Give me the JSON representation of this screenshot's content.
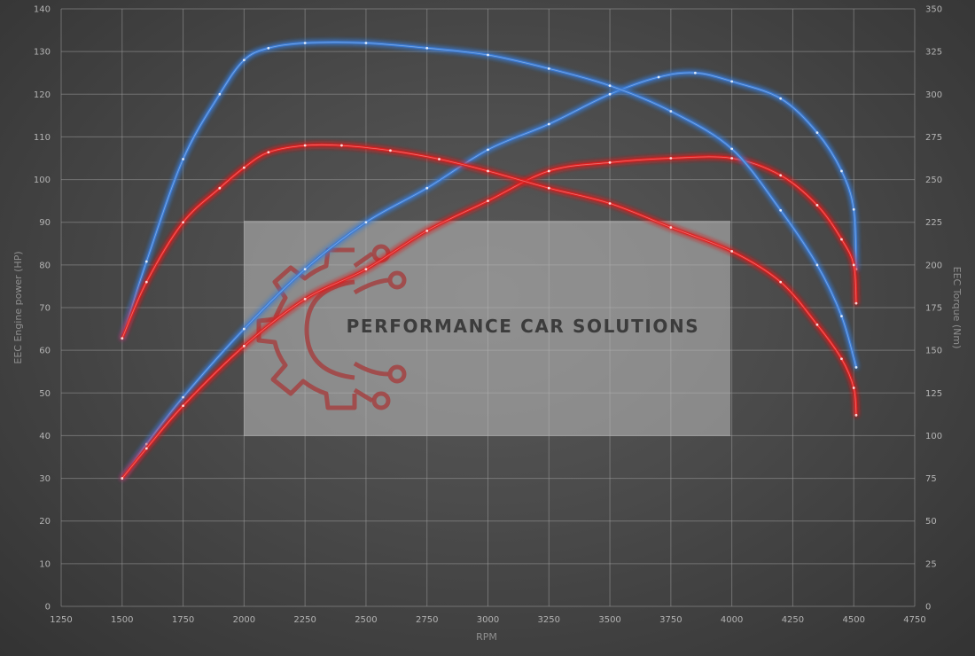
{
  "chart_data": {
    "type": "line",
    "xlabel": "RPM",
    "ylabel_left": "EEC Engine power (HP)",
    "ylabel_right": "EEC Torque (Nm)",
    "xlim": [
      1250,
      4750
    ],
    "ylim_left": [
      0,
      140
    ],
    "ylim_right": [
      0,
      350
    ],
    "grid": true,
    "x_ticks": [
      1250,
      1500,
      1750,
      2000,
      2250,
      2500,
      2750,
      3000,
      3250,
      3500,
      3750,
      4000,
      4250,
      4500,
      4750
    ],
    "y_ticks_left": [
      0,
      10,
      20,
      30,
      40,
      50,
      60,
      70,
      80,
      90,
      100,
      110,
      120,
      130,
      140
    ],
    "y_ticks_right": [
      0,
      25,
      50,
      75,
      100,
      125,
      150,
      175,
      200,
      225,
      250,
      275,
      300,
      325,
      350
    ],
    "series": [
      {
        "axis": "left",
        "color": "#3a7bd5",
        "points": [
          [
            1500,
            30
          ],
          [
            1600,
            38
          ],
          [
            1750,
            49
          ],
          [
            2000,
            65
          ],
          [
            2250,
            79
          ],
          [
            2500,
            90
          ],
          [
            2750,
            98
          ],
          [
            3000,
            107
          ],
          [
            3250,
            113
          ],
          [
            3500,
            120
          ],
          [
            3700,
            124
          ],
          [
            3850,
            125
          ],
          [
            4000,
            123
          ],
          [
            4200,
            119
          ],
          [
            4350,
            111
          ],
          [
            4450,
            102
          ],
          [
            4500,
            93
          ],
          [
            4510,
            79
          ]
        ]
      },
      {
        "axis": "left",
        "color": "#e02020",
        "points": [
          [
            1500,
            30
          ],
          [
            1600,
            37
          ],
          [
            1750,
            47
          ],
          [
            2000,
            61
          ],
          [
            2250,
            72
          ],
          [
            2500,
            79
          ],
          [
            2750,
            88
          ],
          [
            3000,
            95
          ],
          [
            3250,
            102
          ],
          [
            3500,
            104
          ],
          [
            3750,
            105
          ],
          [
            4000,
            105
          ],
          [
            4200,
            101
          ],
          [
            4350,
            94
          ],
          [
            4450,
            86
          ],
          [
            4500,
            80
          ],
          [
            4510,
            71
          ]
        ]
      },
      {
        "axis": "right",
        "color": "#3a7bd5",
        "points": [
          [
            1500,
            157
          ],
          [
            1600,
            202
          ],
          [
            1750,
            262
          ],
          [
            1900,
            300
          ],
          [
            2000,
            320
          ],
          [
            2100,
            327
          ],
          [
            2250,
            330
          ],
          [
            2500,
            330
          ],
          [
            2750,
            327
          ],
          [
            3000,
            323
          ],
          [
            3250,
            315
          ],
          [
            3500,
            305
          ],
          [
            3750,
            290
          ],
          [
            4000,
            268
          ],
          [
            4200,
            232
          ],
          [
            4350,
            200
          ],
          [
            4450,
            170
          ],
          [
            4510,
            140
          ]
        ]
      },
      {
        "axis": "right",
        "color": "#e02020",
        "points": [
          [
            1500,
            157
          ],
          [
            1600,
            190
          ],
          [
            1750,
            225
          ],
          [
            1900,
            245
          ],
          [
            2000,
            257
          ],
          [
            2100,
            266
          ],
          [
            2250,
            270
          ],
          [
            2400,
            270
          ],
          [
            2600,
            267
          ],
          [
            2800,
            262
          ],
          [
            3000,
            255
          ],
          [
            3250,
            245
          ],
          [
            3500,
            236
          ],
          [
            3750,
            222
          ],
          [
            4000,
            208
          ],
          [
            4200,
            190
          ],
          [
            4350,
            165
          ],
          [
            4450,
            145
          ],
          [
            4500,
            128
          ],
          [
            4510,
            112
          ]
        ]
      }
    ]
  },
  "watermark": {
    "text": "PERFORMANCE CAR SOLUTIONS"
  }
}
